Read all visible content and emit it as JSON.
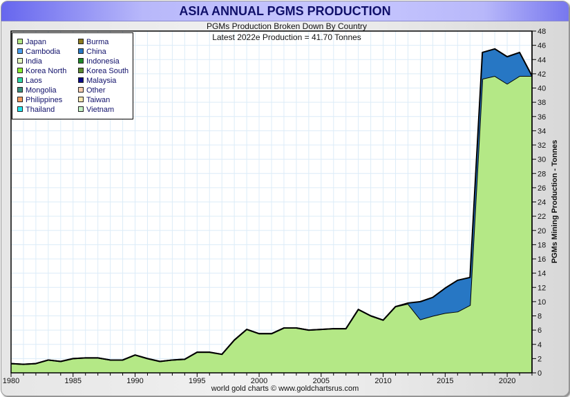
{
  "chart_data": {
    "type": "area",
    "stacked": true,
    "title": "ASIA ANNUAL PGMS PRODUCTION",
    "subtitle": "PGMs Production Broken Down By Country",
    "annotation": "Latest 2022e  Production = 41.70 Tonnes",
    "ylabel": "PGMs Mining Production - Tonnes",
    "xlabel": "",
    "footer": "world gold charts © www.goldchartsrus.com",
    "xlim": [
      1980,
      2022
    ],
    "ylim": [
      0,
      48
    ],
    "x_ticks": [
      1980,
      1985,
      1990,
      1995,
      2000,
      2005,
      2010,
      2015,
      2020
    ],
    "y_ticks": [
      0,
      2,
      4,
      6,
      8,
      10,
      12,
      14,
      16,
      18,
      20,
      22,
      24,
      26,
      28,
      30,
      32,
      34,
      36,
      38,
      40,
      42,
      44,
      46,
      48
    ],
    "grid": true,
    "legend_position": "top-left",
    "legend": [
      {
        "name": "Japan",
        "color": "#b4e886"
      },
      {
        "name": "Burma",
        "color": "#8c7a1e"
      },
      {
        "name": "Cambodia",
        "color": "#4a9ff0"
      },
      {
        "name": "China",
        "color": "#2777c4"
      },
      {
        "name": "India",
        "color": "#e4f7c0"
      },
      {
        "name": "Indonesia",
        "color": "#1e8a2a"
      },
      {
        "name": "Korea North",
        "color": "#88ee33"
      },
      {
        "name": "Korea South",
        "color": "#5a8a30"
      },
      {
        "name": "Laos",
        "color": "#2ed8a8"
      },
      {
        "name": "Malaysia",
        "color": "#0a0a88"
      },
      {
        "name": "Mongolia",
        "color": "#3a9080"
      },
      {
        "name": "Other",
        "color": "#f8ccb0"
      },
      {
        "name": "Philippines",
        "color": "#f59a60"
      },
      {
        "name": "Taiwan",
        "color": "#fae8b0"
      },
      {
        "name": "Thailand",
        "color": "#22e6f0"
      },
      {
        "name": "Vietnam",
        "color": "#c4f2c4"
      }
    ],
    "x": [
      1980,
      1981,
      1982,
      1983,
      1984,
      1985,
      1986,
      1987,
      1988,
      1989,
      1990,
      1991,
      1992,
      1993,
      1994,
      1995,
      1996,
      1997,
      1998,
      1999,
      2000,
      2001,
      2002,
      2003,
      2004,
      2005,
      2006,
      2007,
      2008,
      2009,
      2010,
      2011,
      2012,
      2013,
      2014,
      2015,
      2016,
      2017,
      2018,
      2019,
      2020,
      2021,
      2022
    ],
    "series": [
      {
        "name": "Japan",
        "color": "#b4e886",
        "values": [
          1.3,
          1.2,
          1.3,
          1.8,
          1.6,
          2.0,
          2.1,
          2.1,
          1.8,
          1.8,
          2.5,
          2.0,
          1.6,
          1.8,
          1.9,
          2.9,
          2.9,
          2.6,
          4.6,
          6.1,
          5.5,
          5.5,
          6.3,
          6.3,
          6.0,
          6.1,
          6.2,
          6.2,
          8.9,
          8.0,
          7.4,
          9.3,
          9.7,
          7.5,
          8.0,
          8.4,
          8.6,
          9.5,
          41.3,
          41.7,
          40.6,
          41.7,
          41.7
        ]
      },
      {
        "name": "China",
        "color": "#2777c4",
        "values": [
          0,
          0,
          0,
          0,
          0,
          0,
          0,
          0,
          0,
          0,
          0,
          0,
          0,
          0,
          0,
          0,
          0,
          0,
          0,
          0,
          0,
          0,
          0,
          0,
          0,
          0,
          0,
          0,
          0,
          0,
          0,
          0,
          0.1,
          2.5,
          2.6,
          3.5,
          4.4,
          3.9,
          3.7,
          3.8,
          3.8,
          3.3,
          0
        ]
      }
    ]
  }
}
